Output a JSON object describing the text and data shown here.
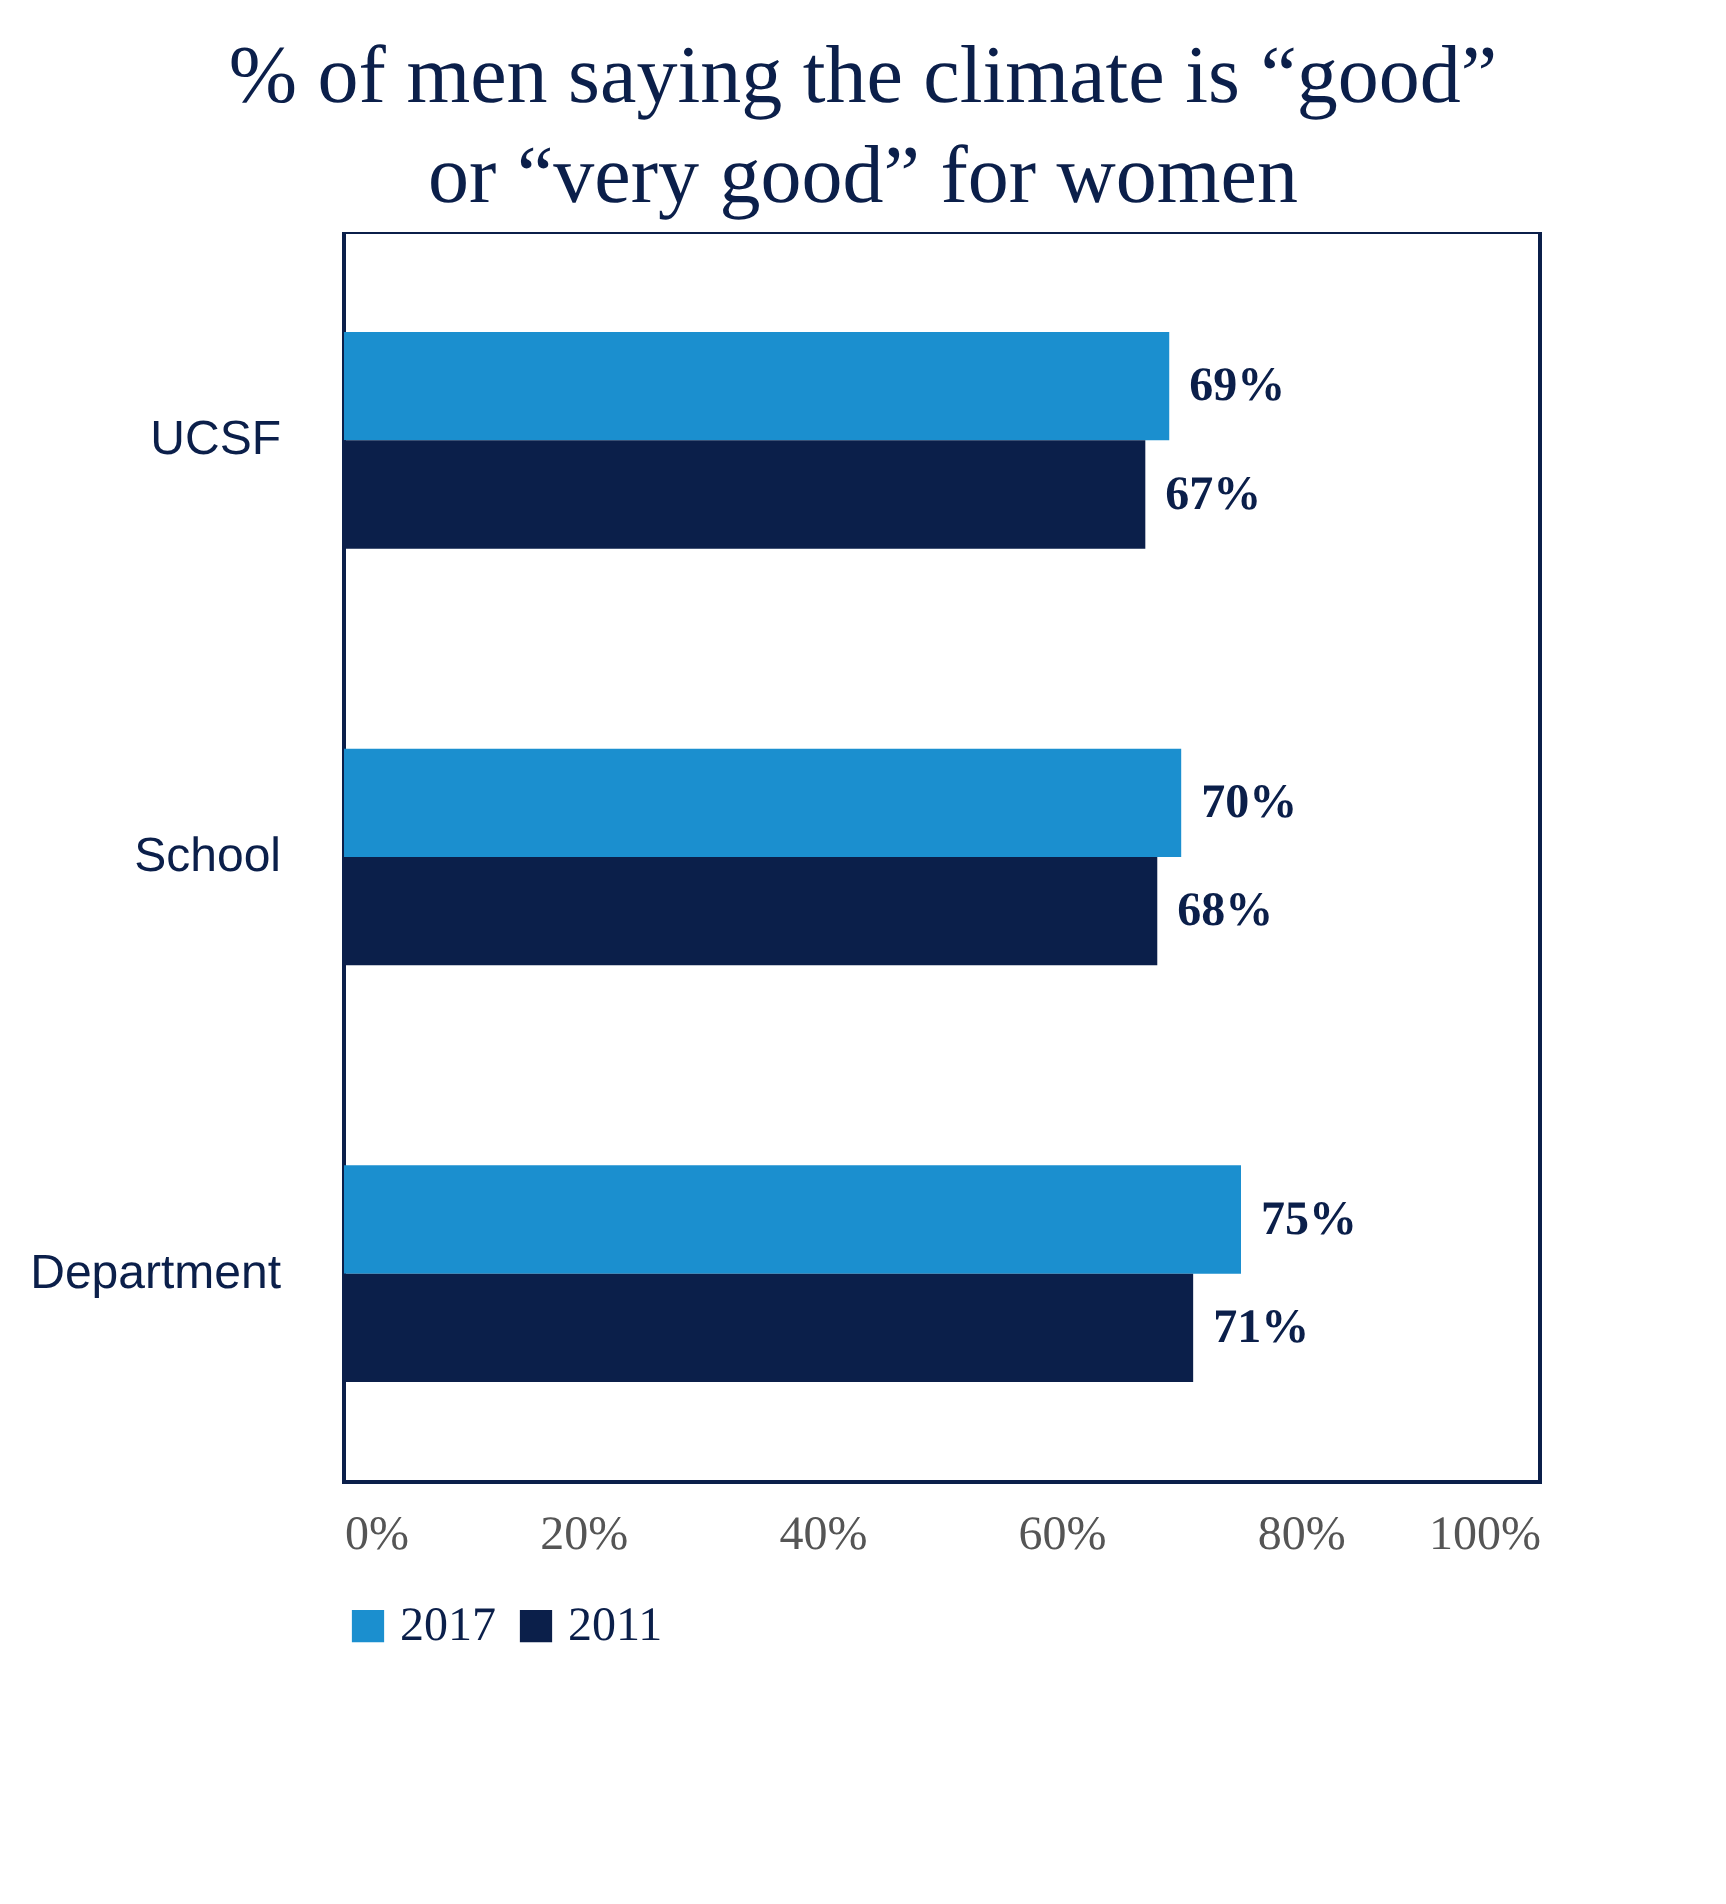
{
  "chart_data": {
    "type": "bar",
    "orientation": "horizontal",
    "title": "% of men saying the climate is “good” or “very good” for women",
    "categories": [
      "UCSF",
      "School",
      "Department"
    ],
    "series": [
      {
        "name": "2017",
        "color": "#1b8fcf",
        "values": [
          69,
          70,
          75
        ],
        "value_labels": [
          "69%",
          "70%",
          "75%"
        ]
      },
      {
        "name": "2011",
        "color": "#0b1f4a",
        "values": [
          67,
          68,
          71
        ],
        "value_labels": [
          "67%",
          "68%",
          "71%"
        ]
      }
    ],
    "xlim": [
      0,
      100
    ],
    "xticks": [
      {
        "value": 0,
        "label": "0%"
      },
      {
        "value": 20,
        "label": "20%"
      },
      {
        "value": 40,
        "label": "40%"
      },
      {
        "value": 60,
        "label": "60%"
      },
      {
        "value": 80,
        "label": "80%"
      },
      {
        "value": 100,
        "label": "100%"
      }
    ],
    "grid": false,
    "legend": "bottom"
  }
}
